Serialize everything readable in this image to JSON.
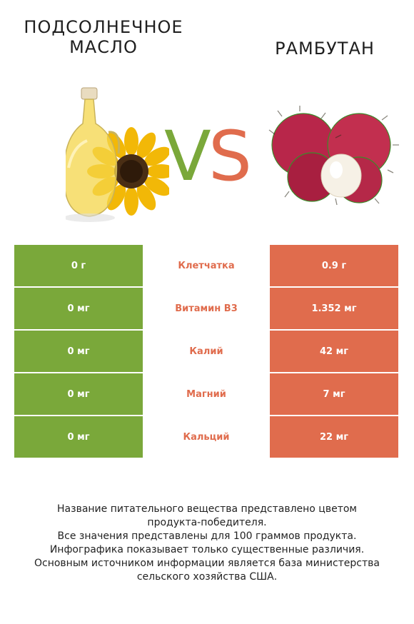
{
  "left": {
    "title_line1": "Подсолнечное",
    "title_line2": "масло",
    "image_icon": "sunflower-oil-bottle-icon",
    "color": "#7aa83a"
  },
  "right": {
    "title": "Рамбутан",
    "image_icon": "rambutan-fruit-icon",
    "color": "#e06c4d"
  },
  "vs": {
    "v": "V",
    "s": "S"
  },
  "rows": [
    {
      "left": "0 г",
      "nutrient": "Клетчатка",
      "right": "0.9 г"
    },
    {
      "left": "0 мг",
      "nutrient": "Витамин B3",
      "right": "1.352 мг"
    },
    {
      "left": "0 мг",
      "nutrient": "Калий",
      "right": "42 мг"
    },
    {
      "left": "0 мг",
      "nutrient": "Магний",
      "right": "7 мг"
    },
    {
      "left": "0 мг",
      "nutrient": "Кальций",
      "right": "22 мг"
    }
  ],
  "footnote": {
    "line1": "Название питательного вещества представлено цветом",
    "line2": "продукта-победителя.",
    "line3": "Все значения представлены для 100 граммов продукта.",
    "line4": "Инфографика показывает только существенные различия.",
    "line5": "Основным источником информации является база министерства",
    "line6": "сельского хозяйства США."
  }
}
